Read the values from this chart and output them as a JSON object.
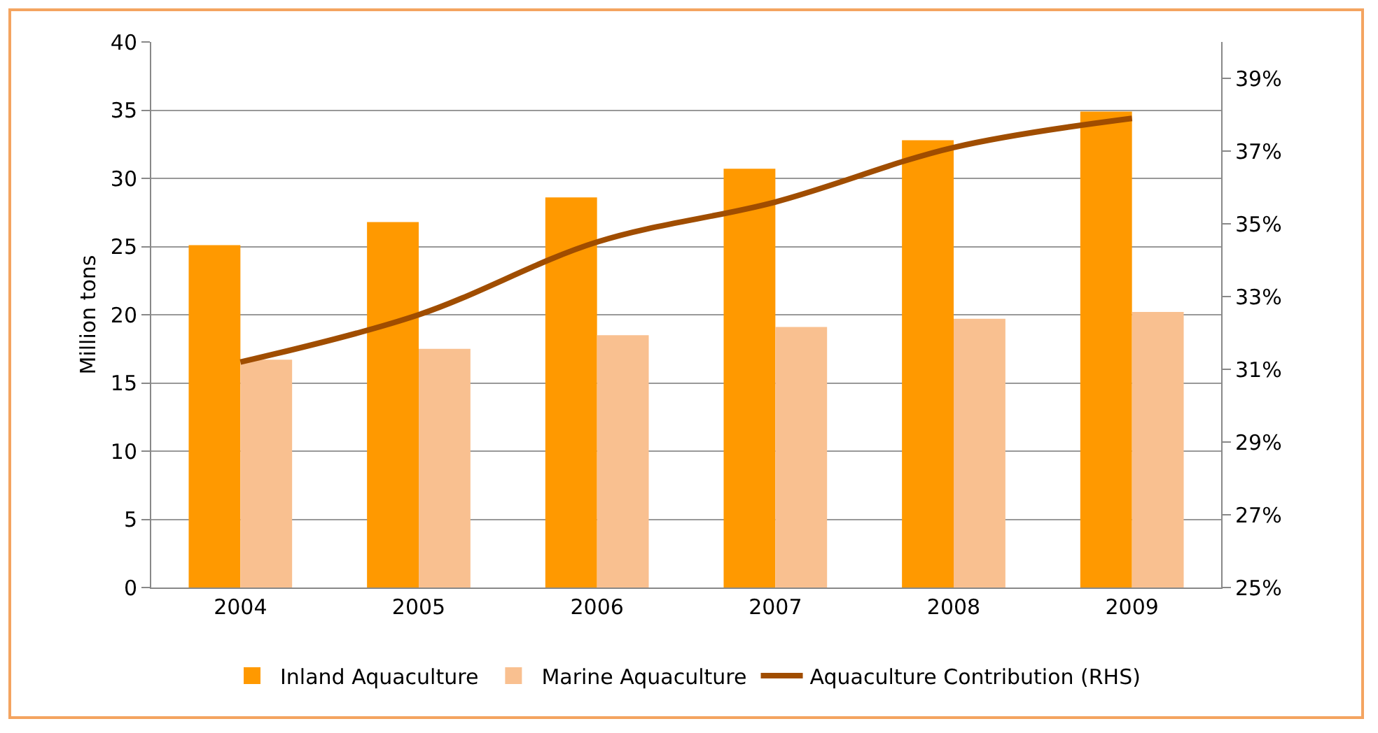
{
  "chart_data": {
    "type": "bar",
    "ylabel": "Million tons",
    "categories": [
      "2004",
      "2005",
      "2006",
      "2007",
      "2008",
      "2009"
    ],
    "series": [
      {
        "name": "Inland Aquaculture",
        "color": "#ff9900",
        "values": [
          25.1,
          26.8,
          28.6,
          30.7,
          32.8,
          34.9
        ]
      },
      {
        "name": "Marine Aquaculture",
        "color": "#f9c090",
        "values": [
          16.7,
          17.5,
          18.5,
          19.1,
          19.7,
          20.2
        ]
      },
      {
        "name": "Aquaculture Contribution (RHS)",
        "type": "line",
        "axis": "y2",
        "color": "#a04d00",
        "marker": "none",
        "line_style": "solid",
        "values": [
          31.2,
          32.5,
          34.5,
          35.6,
          37.1,
          37.9
        ]
      }
    ],
    "ylim": [
      0,
      40
    ],
    "yticks": [
      0,
      5,
      10,
      15,
      20,
      25,
      30,
      35,
      40
    ],
    "y2lim": [
      25,
      40
    ],
    "y2ticks": [
      {
        "value": 25,
        "label": "25%"
      },
      {
        "value": 27,
        "label": "27%"
      },
      {
        "value": 29,
        "label": "29%"
      },
      {
        "value": 31,
        "label": "31%"
      },
      {
        "value": 33,
        "label": "33%"
      },
      {
        "value": 35,
        "label": "35%"
      },
      {
        "value": 37,
        "label": "37%"
      },
      {
        "value": 39,
        "label": "39%"
      }
    ],
    "grid": "y",
    "legend": "bottom"
  }
}
